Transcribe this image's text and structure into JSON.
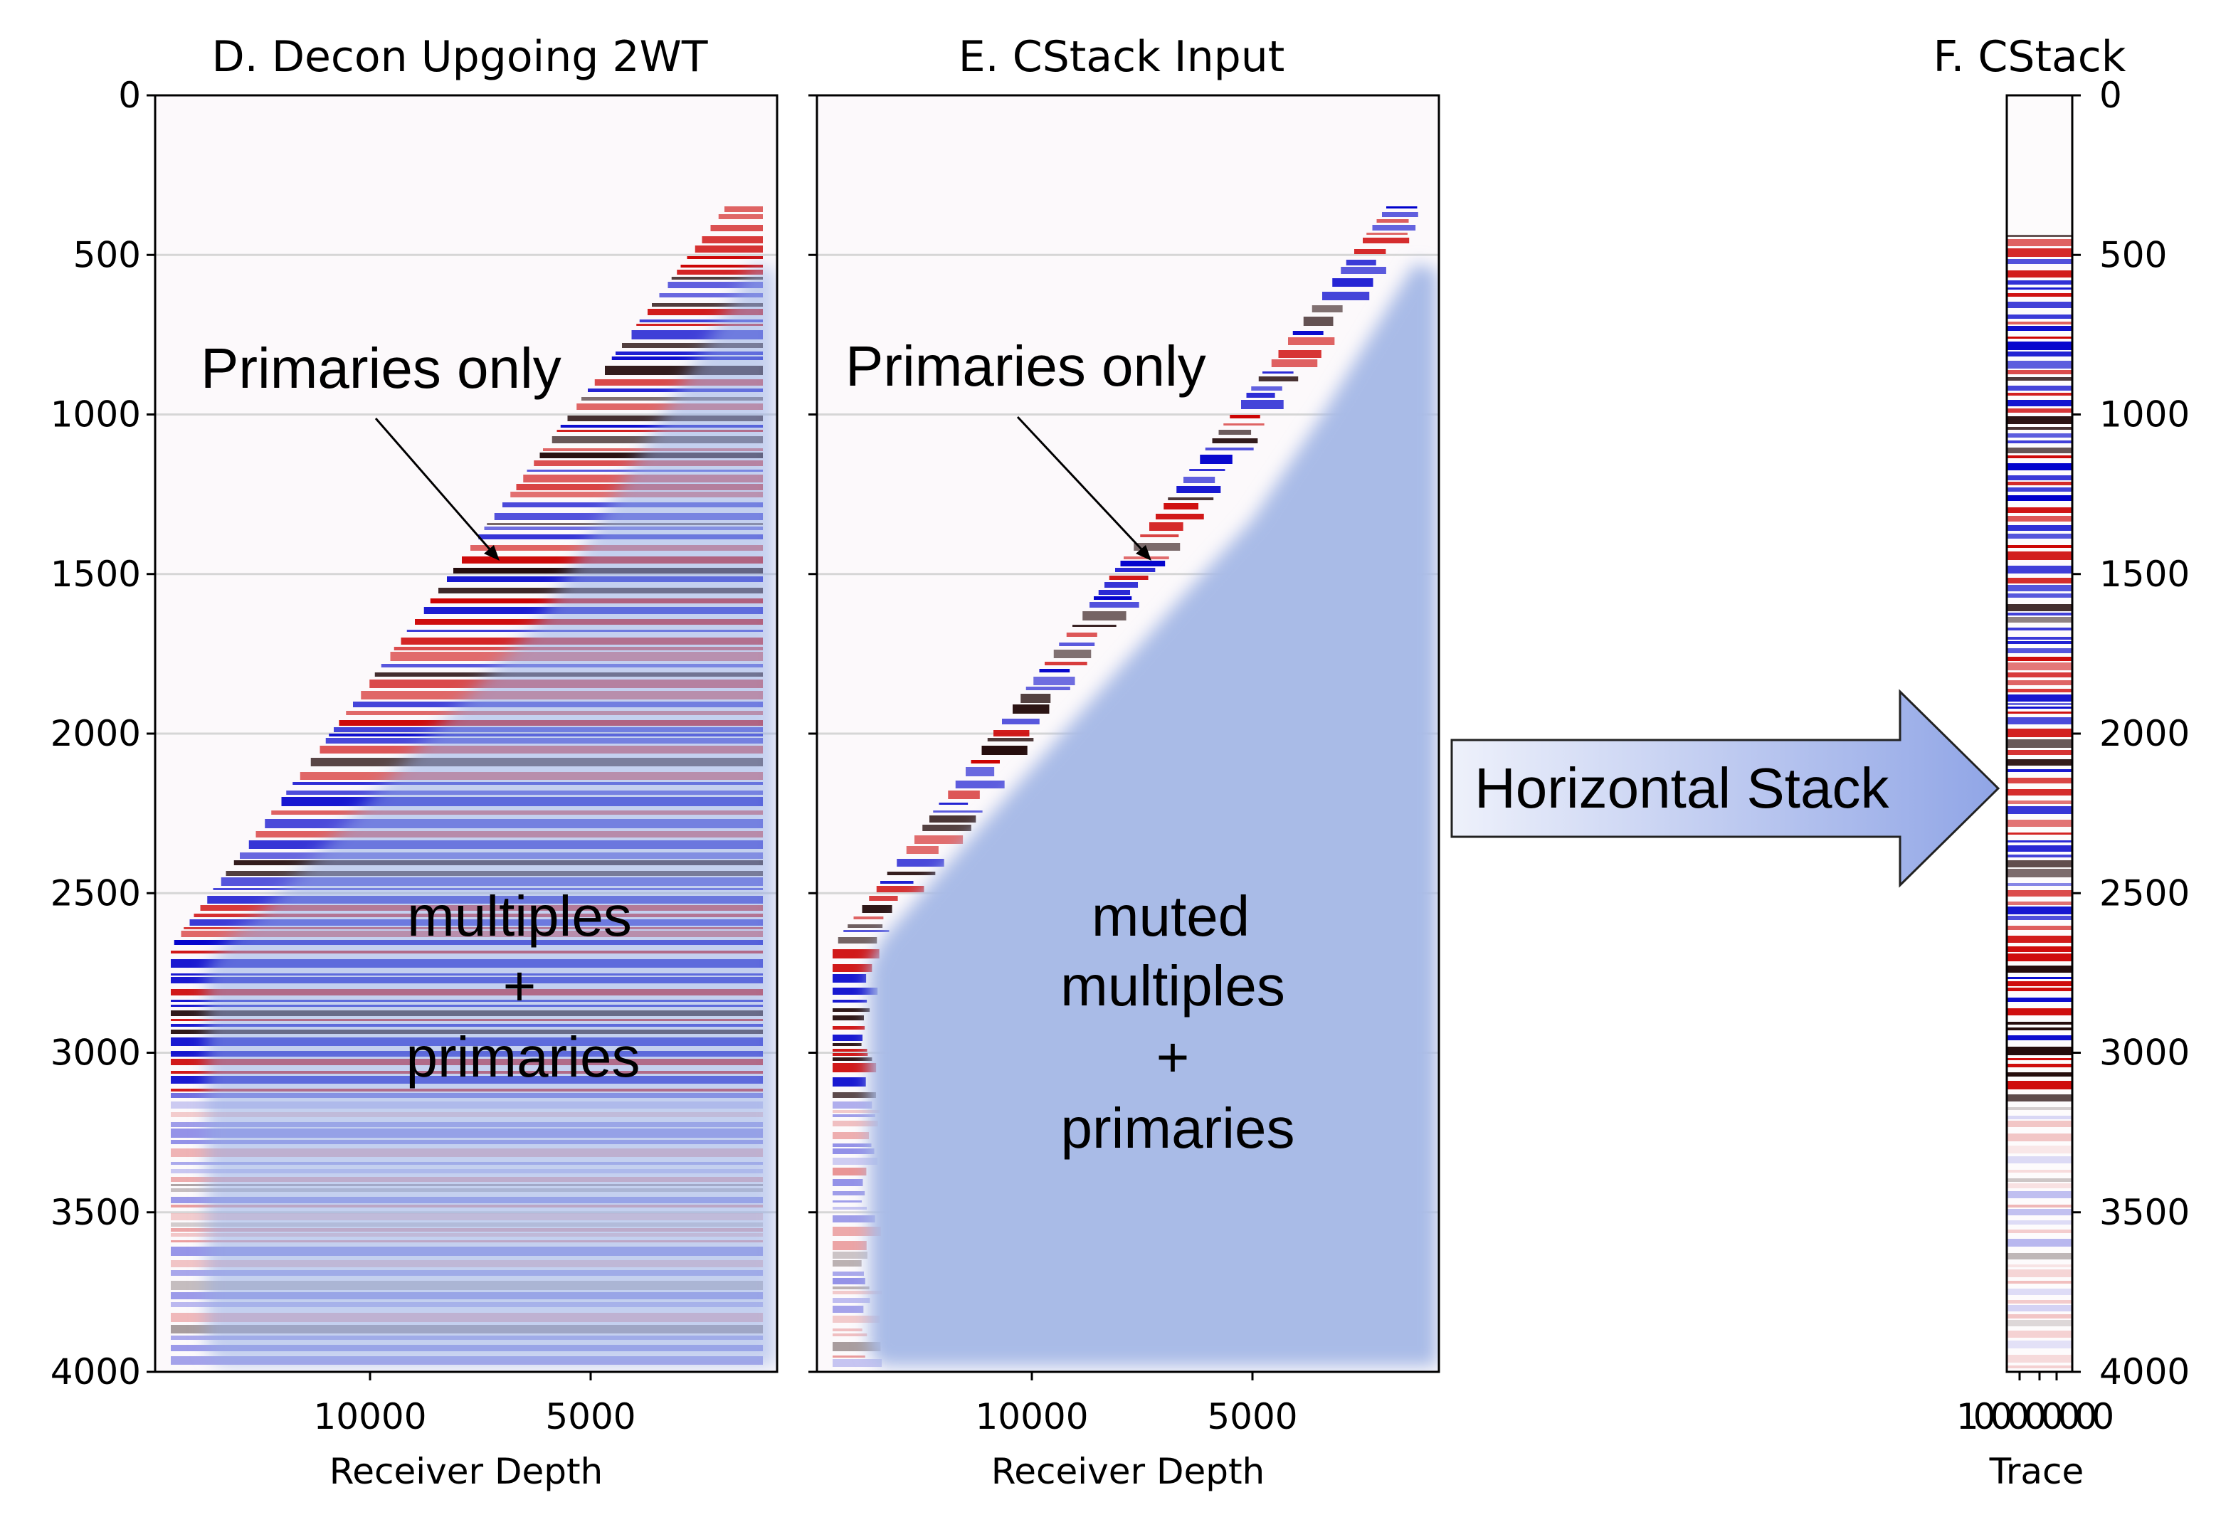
{
  "panels": [
    {
      "title": "D. Decon Upgoing 2WT",
      "xlabel": "Receiver Depth",
      "xticks": [
        "10000",
        "5000"
      ],
      "annotation_top": "Primaries only",
      "annotation_body": [
        "multiples",
        "+",
        "primaries"
      ]
    },
    {
      "title": "E. CStack Input",
      "xlabel": "Receiver Depth",
      "xticks": [
        "10000",
        "5000"
      ],
      "annotation_top": "Primaries only",
      "annotation_body": [
        "muted",
        "multiples",
        "+",
        "primaries"
      ]
    },
    {
      "title": "F. CStack",
      "xlabel": "Trace",
      "xticks_text": "100000000"
    }
  ],
  "yticks": [
    "0",
    "500",
    "1000",
    "1500",
    "2000",
    "2500",
    "3000",
    "3500",
    "4000"
  ],
  "arrow_label": "Horizontal Stack",
  "colors": {
    "red": "#cc0000",
    "blue": "#0000cc",
    "dark": "#1a0000",
    "overlay": "#97ade6",
    "arrow_start": "#eef1fb",
    "arrow_end": "#90a5e6"
  },
  "chart_data": [
    {
      "type": "heatmap",
      "title": "D. Decon Upgoing 2WT",
      "xlabel": "Receiver Depth",
      "ylim": [
        4000,
        0
      ],
      "xticks": [
        10000,
        5000
      ],
      "yticks": [
        0,
        500,
        1000,
        1500,
        2000,
        2500,
        3000,
        3500,
        4000
      ]
    },
    {
      "type": "heatmap",
      "title": "E. CStack Input",
      "xlabel": "Receiver Depth",
      "ylim": [
        4000,
        0
      ],
      "xticks": [
        10000,
        5000
      ],
      "yticks": [
        0,
        500,
        1000,
        1500,
        2000,
        2500,
        3000,
        3500,
        4000
      ]
    },
    {
      "type": "heatmap",
      "title": "F. CStack",
      "xlabel": "Trace",
      "ylim": [
        4000,
        0
      ],
      "yticks": [
        0,
        500,
        1000,
        1500,
        2000,
        2500,
        3000,
        3500,
        4000
      ]
    }
  ]
}
